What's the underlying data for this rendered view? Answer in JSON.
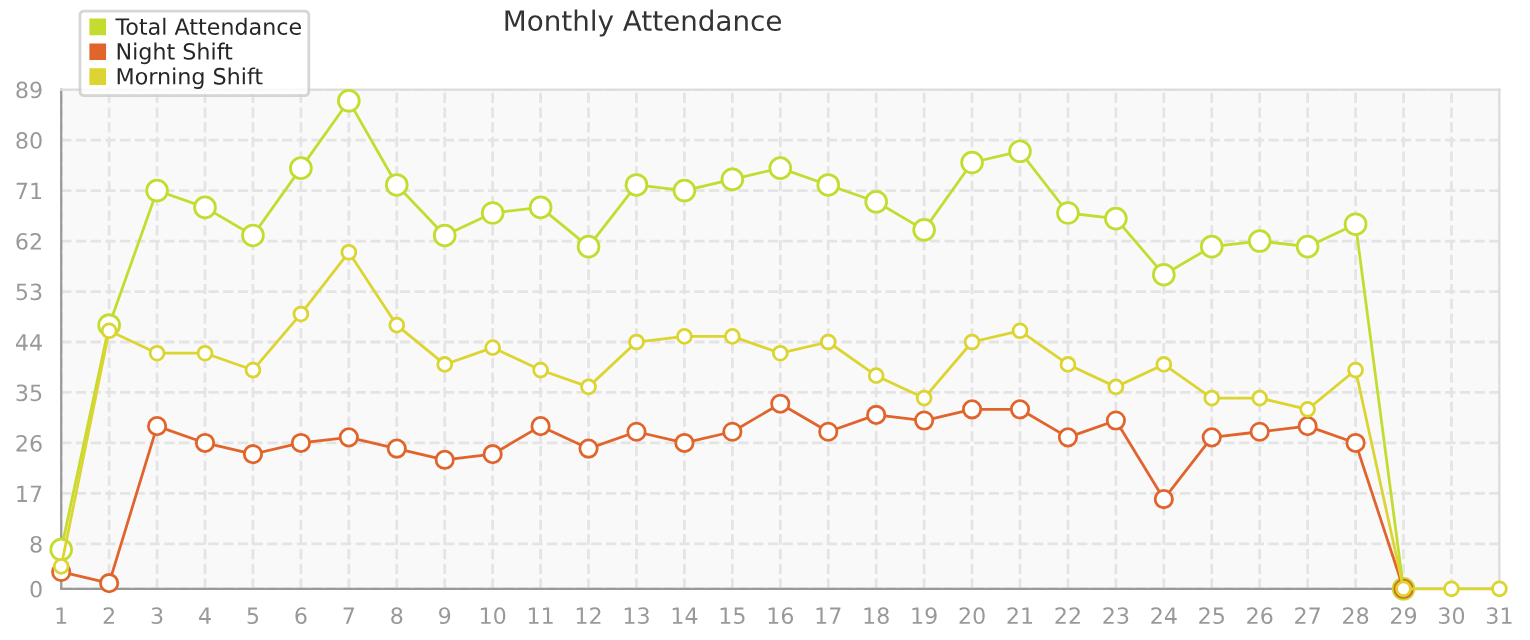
{
  "chart_data": {
    "type": "line",
    "title": "Monthly Attendance",
    "x": [
      1,
      2,
      3,
      4,
      5,
      6,
      7,
      8,
      9,
      10,
      11,
      12,
      13,
      14,
      15,
      16,
      17,
      18,
      19,
      20,
      21,
      22,
      23,
      24,
      25,
      26,
      27,
      28,
      29,
      30,
      31
    ],
    "series": [
      {
        "name": "Total Attendance",
        "color": "#c4dc30",
        "values": [
          7,
          47,
          71,
          68,
          63,
          75,
          87,
          72,
          63,
          67,
          68,
          61,
          72,
          71,
          73,
          75,
          72,
          69,
          64,
          76,
          78,
          67,
          66,
          56,
          61,
          62,
          61,
          65,
          0,
          null,
          null
        ]
      },
      {
        "name": "Night Shift",
        "color": "#e0642c",
        "values": [
          3,
          1,
          29,
          26,
          24,
          26,
          27,
          25,
          23,
          24,
          29,
          25,
          28,
          26,
          28,
          33,
          28,
          31,
          30,
          32,
          32,
          27,
          30,
          16,
          27,
          28,
          29,
          26,
          0,
          null,
          null
        ]
      },
      {
        "name": "Morning Shift",
        "color": "#dcd430",
        "values": [
          4,
          46,
          42,
          42,
          39,
          49,
          60,
          47,
          40,
          43,
          39,
          36,
          44,
          45,
          45,
          42,
          44,
          38,
          34,
          44,
          46,
          40,
          36,
          40,
          34,
          34,
          32,
          39,
          0,
          0,
          0
        ]
      }
    ],
    "xlim": [
      1,
      31
    ],
    "xticks": [
      1,
      2,
      3,
      4,
      5,
      6,
      7,
      8,
      9,
      10,
      11,
      12,
      13,
      14,
      15,
      16,
      17,
      18,
      19,
      20,
      21,
      22,
      23,
      24,
      25,
      26,
      27,
      28,
      29,
      30,
      31
    ],
    "ylim": [
      0,
      89
    ],
    "yticks": [
      0,
      8,
      17,
      26,
      35,
      44,
      53,
      62,
      71,
      80,
      89
    ],
    "grid": true,
    "legend": "top left",
    "marker": "circle",
    "line_style": "solid"
  }
}
